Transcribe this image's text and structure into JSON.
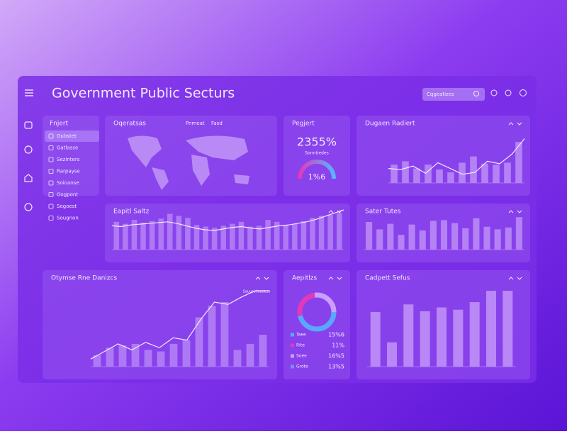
{
  "header": {
    "title": "Government Public Secturs",
    "search": "Cqgeatizes"
  },
  "nav": {
    "title": "Fnjert",
    "items": [
      "Gubstet",
      "Gatlasse",
      "Sezinters",
      "Rarpayse",
      "Soioanse",
      "Gogpont",
      "Segoest",
      "Sougnon"
    ]
  },
  "panels": {
    "map": {
      "title": "Oqeratsas",
      "tabs": [
        "Pnmeat",
        "Fasd"
      ]
    },
    "kpi": {
      "title": "Pegjert",
      "value": "2355%",
      "caption": "Sonntiedes",
      "gauge": "1%6"
    },
    "radiert": {
      "title": "Dugaen Radiert",
      "color": "#b98af6",
      "values": [
        38,
        45,
        30,
        38,
        28,
        22,
        42,
        55,
        40,
        38,
        42,
        85
      ],
      "line": [
        30,
        28,
        35,
        20,
        42,
        30,
        18,
        22,
        45,
        40,
        60,
        92
      ]
    },
    "saltz": {
      "title": "Eapitl Saltz",
      "color": "#b27ff5",
      "values": [
        70,
        65,
        75,
        68,
        72,
        78,
        90,
        85,
        80,
        62,
        58,
        55,
        60,
        65,
        70,
        58,
        60,
        75,
        70,
        62,
        65,
        72,
        80,
        85,
        88,
        92
      ],
      "line": [
        60,
        58,
        62,
        64,
        66,
        68,
        70,
        66,
        60,
        54,
        50,
        48,
        52,
        56,
        58,
        54,
        52,
        56,
        60,
        62,
        66,
        70,
        76,
        84,
        92,
        100
      ]
    },
    "tutes": {
      "title": "Sater Tutes",
      "color": "#b98af6",
      "values": [
        75,
        55,
        70,
        40,
        68,
        52,
        78,
        80,
        72,
        58,
        85,
        62,
        55,
        60,
        88
      ]
    },
    "danizcs": {
      "title": "Otymse Rne Danizcs",
      "note": "Sauusshoudess",
      "color": "#b27ff5",
      "values": [
        15,
        25,
        28,
        30,
        22,
        20,
        30,
        35,
        65,
        80,
        85,
        22,
        30,
        42
      ],
      "line": [
        10,
        20,
        30,
        22,
        32,
        25,
        38,
        35,
        62,
        85,
        82,
        92,
        100,
        100
      ]
    },
    "aepitlzs": {
      "title": "Aepitlzs",
      "legend": [
        {
          "name": "Taee",
          "text": "15%6"
        },
        {
          "name": "Rite",
          "text": "11%"
        },
        {
          "name": "Soee",
          "text": "16%5"
        },
        {
          "name": "Grote",
          "text": "13%5"
        }
      ]
    },
    "sefus": {
      "title": "Cadpett Sefus",
      "color": "#c08ff7",
      "values": [
        72,
        32,
        82,
        73,
        78,
        75,
        85,
        100,
        100
      ]
    }
  }
}
